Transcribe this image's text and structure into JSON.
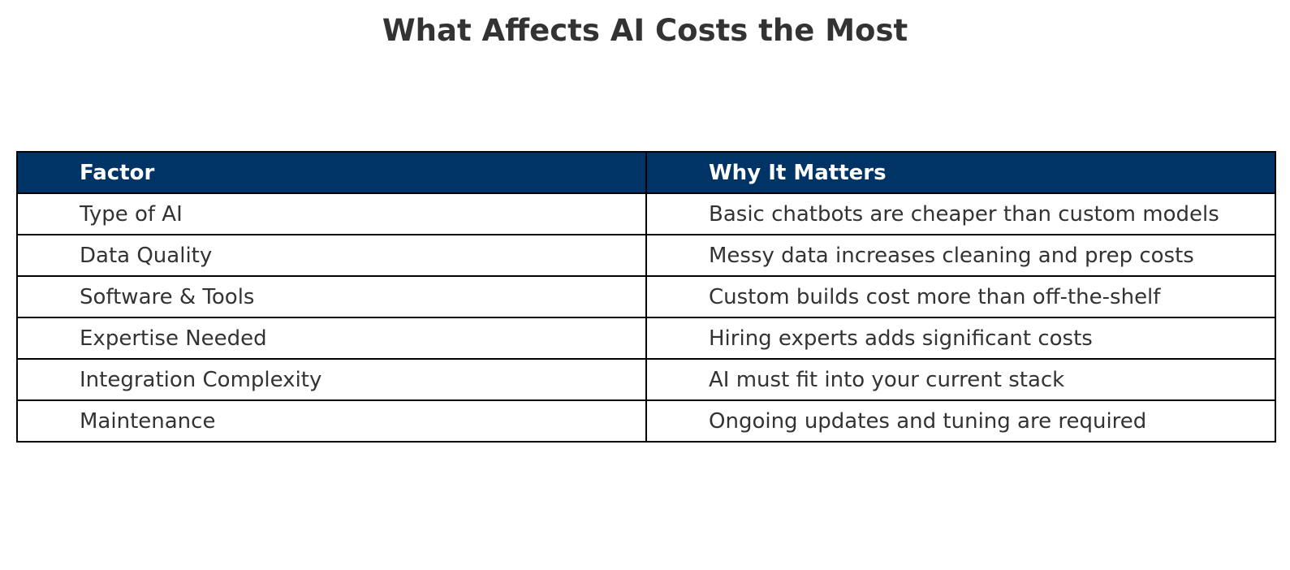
{
  "chart_data": {
    "type": "table",
    "title": "What Affects AI Costs the Most",
    "columns": [
      "Factor",
      "Why It Matters"
    ],
    "rows": [
      [
        "Type of AI",
        "Basic chatbots are cheaper than custom models"
      ],
      [
        "Data Quality",
        "Messy data increases cleaning and prep costs"
      ],
      [
        "Software & Tools",
        "Custom builds cost more than off-the-shelf"
      ],
      [
        "Expertise Needed",
        "Hiring experts adds significant costs"
      ],
      [
        "Integration Complexity",
        "AI must fit into your current stack"
      ],
      [
        "Maintenance",
        "Ongoing updates and tuning are required"
      ]
    ],
    "colors": {
      "header_background": "#003366",
      "header_text": "#ffffff",
      "body_text": "#333333",
      "border": "#000000"
    }
  }
}
